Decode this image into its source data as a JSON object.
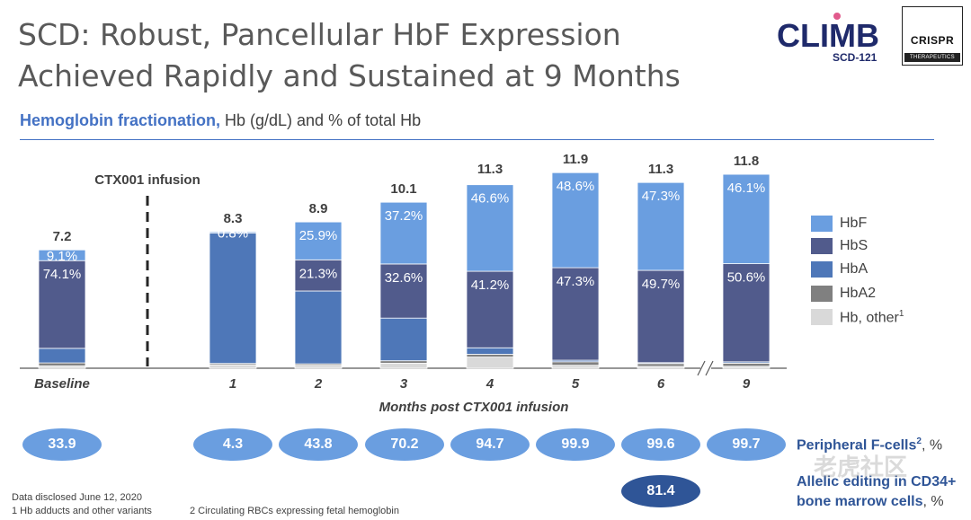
{
  "header": {
    "title": "SCD: Robust, Pancellular HbF Expression Achieved Rapidly and Sustained at 9 Months",
    "subtitle_bold": "Hemoglobin fractionation,",
    "subtitle_rest": " Hb (g/dL) and % of total Hb"
  },
  "logos": {
    "climb_text": "CLIMB",
    "climb_sub": "SCD-121",
    "crispr_name": "CRISPR",
    "crispr_sub": "THERAPEUTICS"
  },
  "chart_data": {
    "type": "bar",
    "stacked": true,
    "categories": [
      "Baseline",
      "1",
      "2",
      "3",
      "4",
      "5",
      "6",
      "9"
    ],
    "xlabel": "Months post CTX001 infusion",
    "infusion_marker_label": "CTX001 infusion",
    "totals": [
      7.2,
      8.3,
      8.9,
      10.1,
      11.3,
      11.9,
      11.3,
      11.8
    ],
    "series": [
      {
        "name": "Hb, other",
        "color": "#d9d9d9",
        "percent": [
          2.0,
          2.5,
          2.0,
          3.0,
          6.0,
          1.5,
          1.0,
          1.0
        ],
        "labels": [
          "",
          "",
          "",
          "",
          "",
          "",
          "",
          ""
        ]
      },
      {
        "name": "HbA2",
        "color": "#808080",
        "percent": [
          2.5,
          1.0,
          1.0,
          1.5,
          1.5,
          1.8,
          1.5,
          1.6
        ],
        "labels": [
          "",
          "",
          "",
          "",
          "",
          "",
          "",
          ""
        ]
      },
      {
        "name": "HbA",
        "color": "#4e77b8",
        "percent": [
          12.3,
          95.7,
          49.8,
          25.7,
          3.5,
          0.8,
          0.5,
          0.7
        ],
        "labels": [
          "",
          "",
          "",
          "",
          "",
          "",
          "",
          ""
        ]
      },
      {
        "name": "HbS",
        "color": "#515b8c",
        "percent": [
          74.1,
          0,
          21.3,
          32.6,
          41.2,
          47.3,
          49.7,
          50.6
        ],
        "labels": [
          "74.1%",
          "",
          "21.3%",
          "32.6%",
          "41.2%",
          "47.3%",
          "49.7%",
          "50.6%"
        ]
      },
      {
        "name": "HbF",
        "color": "#6a9ee0",
        "percent": [
          9.1,
          0.8,
          25.9,
          37.2,
          46.6,
          48.6,
          47.3,
          46.1
        ],
        "labels": [
          "9.1%",
          "0.8%",
          "25.9%",
          "37.2%",
          "46.6%",
          "48.6%",
          "47.3%",
          "46.1%"
        ]
      }
    ],
    "legend": [
      "HbF",
      "HbS",
      "HbA",
      "HbA2",
      "Hb, other"
    ],
    "legend_footnote": "1",
    "axis_break_before": "9"
  },
  "fcells": {
    "values": [
      "33.9",
      "4.3",
      "43.8",
      "70.2",
      "94.7",
      "99.9",
      "99.6",
      "99.7"
    ],
    "label": "Peripheral F-cells",
    "label_sup": "2",
    "label_unit": ", %"
  },
  "editing": {
    "value": "81.4",
    "label_line1": "Allelic editing in CD34+",
    "label_line2": "bone marrow cells",
    "label_unit": ", %"
  },
  "footer": {
    "disclosed": "Data disclosed June 12, 2020",
    "note1": "1  Hb adducts and other variants",
    "note2": "2  Circulating RBCs expressing fetal hemoglobin"
  },
  "watermark": "老虎社区"
}
